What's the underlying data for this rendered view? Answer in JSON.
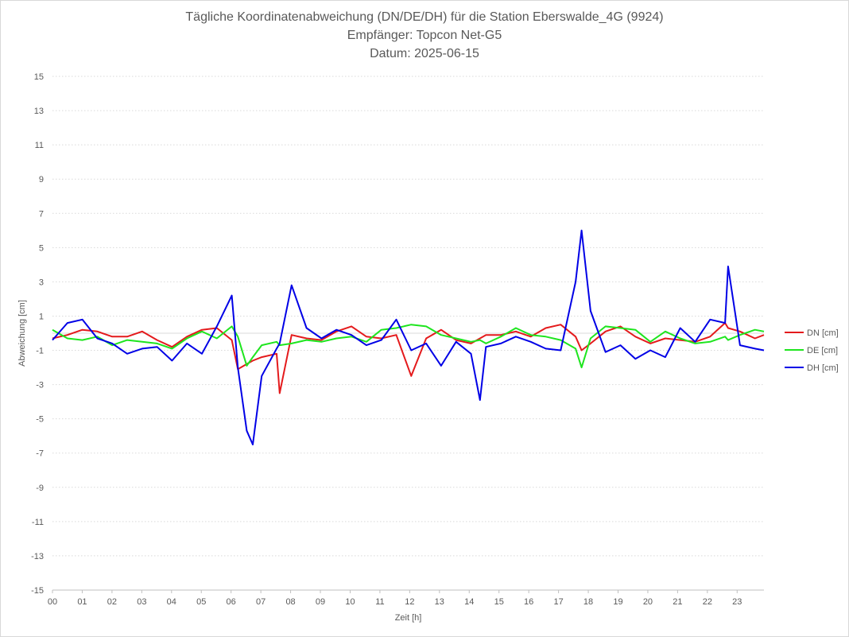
{
  "header": {
    "title": "Tägliche Koordinatenabweichung (DN/DE/DH) für die Station Eberswalde_4G (9924)",
    "receiver": "Empfänger: Topcon Net-G5",
    "date": "Datum: 2025-06-15"
  },
  "chart_data": {
    "type": "line",
    "title": "Tägliche Koordinatenabweichung (DN/DE/DH) für die Station Eberswalde_4G (9924)",
    "subtitle": [
      "Empfänger: Topcon Net-G5",
      "Datum: 2025-06-15"
    ],
    "xlabel": "Zeit [h]",
    "ylabel": "Abweichung [cm]",
    "xlim": [
      0,
      24
    ],
    "ylim": [
      -15,
      15
    ],
    "x_ticks": [
      "00",
      "01",
      "02",
      "03",
      "04",
      "05",
      "06",
      "07",
      "08",
      "09",
      "10",
      "11",
      "12",
      "13",
      "14",
      "15",
      "16",
      "17",
      "18",
      "19",
      "20",
      "21",
      "22",
      "23"
    ],
    "y_ticks": [
      15,
      13,
      11,
      9,
      7,
      5,
      3,
      1,
      -1,
      -3,
      -5,
      -7,
      -9,
      -11,
      -13,
      -15
    ],
    "y_tick_labels": [
      "15",
      "13",
      "11",
      "9",
      "7",
      "5",
      "3",
      "1",
      "-1",
      "-3",
      "-5",
      "-7",
      "-9",
      "-11",
      "-13",
      "-15"
    ],
    "grid": "horizontal dotted",
    "legend_position": "right",
    "x": [
      0.0,
      0.5,
      1.0,
      1.5,
      2.0,
      2.5,
      3.0,
      3.5,
      4.0,
      4.5,
      5.0,
      5.5,
      6.0,
      6.2,
      6.5,
      6.7,
      7.0,
      7.5,
      7.6,
      8.0,
      8.5,
      9.0,
      9.5,
      10.0,
      10.5,
      11.0,
      11.5,
      12.0,
      12.5,
      13.0,
      13.5,
      14.0,
      14.3,
      14.5,
      15.0,
      15.5,
      16.0,
      16.5,
      17.0,
      17.5,
      17.7,
      18.0,
      18.5,
      19.0,
      19.5,
      20.0,
      20.5,
      21.0,
      21.5,
      22.0,
      22.5,
      22.6,
      23.0,
      23.5,
      23.8
    ],
    "series": [
      {
        "name": "DN [cm]",
        "color": "#e41a1c",
        "values": [
          -0.3,
          -0.1,
          0.2,
          0.1,
          -0.2,
          -0.2,
          0.1,
          -0.4,
          -0.8,
          -0.2,
          0.2,
          0.3,
          -0.4,
          -2.1,
          -1.8,
          -1.6,
          -1.4,
          -1.2,
          -3.5,
          -0.1,
          -0.3,
          -0.4,
          0.1,
          0.4,
          -0.2,
          -0.3,
          -0.1,
          -2.5,
          -0.3,
          0.2,
          -0.4,
          -0.6,
          -0.3,
          -0.1,
          -0.1,
          0.1,
          -0.2,
          0.3,
          0.5,
          -0.2,
          -1.0,
          -0.6,
          0.1,
          0.4,
          -0.2,
          -0.6,
          -0.3,
          -0.4,
          -0.5,
          -0.2,
          0.6,
          0.3,
          0.1,
          -0.3,
          -0.1
        ]
      },
      {
        "name": "DE [cm]",
        "color": "#1ee51e",
        "values": [
          0.2,
          -0.3,
          -0.4,
          -0.2,
          -0.7,
          -0.4,
          -0.5,
          -0.6,
          -0.9,
          -0.3,
          0.1,
          -0.3,
          0.4,
          -0.2,
          -1.9,
          -1.4,
          -0.7,
          -0.5,
          -0.7,
          -0.6,
          -0.4,
          -0.5,
          -0.3,
          -0.2,
          -0.5,
          0.2,
          0.3,
          0.5,
          0.4,
          -0.1,
          -0.3,
          -0.5,
          -0.4,
          -0.6,
          -0.2,
          0.3,
          -0.1,
          -0.2,
          -0.4,
          -0.9,
          -2.0,
          -0.3,
          0.4,
          0.3,
          0.2,
          -0.5,
          0.1,
          -0.3,
          -0.6,
          -0.5,
          -0.2,
          -0.4,
          -0.1,
          0.2,
          0.1
        ]
      },
      {
        "name": "DH [cm]",
        "color": "#0000e6",
        "values": [
          -0.4,
          0.6,
          0.8,
          -0.3,
          -0.6,
          -1.2,
          -0.9,
          -0.8,
          -1.6,
          -0.6,
          -1.2,
          0.4,
          2.2,
          -2.0,
          -5.7,
          -6.5,
          -2.5,
          -0.9,
          -0.6,
          2.8,
          0.3,
          -0.3,
          0.2,
          -0.1,
          -0.7,
          -0.4,
          0.8,
          -1.0,
          -0.6,
          -1.9,
          -0.5,
          -1.2,
          -3.9,
          -0.8,
          -0.6,
          -0.2,
          -0.5,
          -0.9,
          -1.0,
          3.0,
          6.0,
          1.3,
          -1.1,
          -0.7,
          -1.5,
          -1.0,
          -1.4,
          0.3,
          -0.5,
          0.8,
          0.6,
          3.9,
          -0.7,
          -0.9,
          -1.0
        ]
      }
    ]
  }
}
